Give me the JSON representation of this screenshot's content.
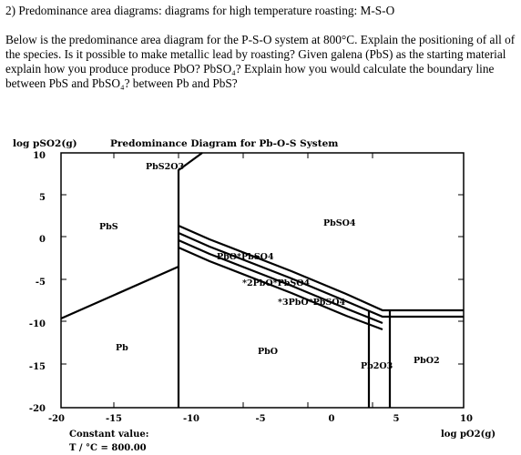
{
  "question": {
    "title": "2) Predominance area diagrams: diagrams for high temperature roasting: M-S-O",
    "body": "Below is the predominance area diagram for the P-S-O system at 800°C. Explain the positioning of all of the species. Is it possible to make metallic lead by roasting? Given galena (PbS) as the starting material explain how you produce produce PbO? PbSO₄? Explain how you would calculate the boundary line between PbS and PbSO₄? between Pb and PbS?"
  },
  "figure": {
    "title": "Predominance Diagram for Pb-O-S System",
    "y_axis_label": "log pSO2(g)",
    "x_axis_label": "log pO2(g)",
    "y_ticks": [
      "10",
      "5",
      "0",
      "-5",
      "-10",
      "-15",
      "-20"
    ],
    "x_ticks": [
      "-20",
      "-15",
      "-10",
      "-5",
      "0",
      "5",
      "10"
    ],
    "regions": {
      "pbs2o3": "PbS2O3",
      "pbs": "PbS",
      "pbso4": "PbSO4",
      "pbo_pbso4": "PbO*PbSO4",
      "2pbo_pbso4": "*2PbO*PbSO4",
      "3pbo_pbso4": "*3PbO*PbSO4",
      "pb": "Pb",
      "pbo": "PbO",
      "pb2o3": "Pb2O3",
      "pbo2": "PbO2"
    },
    "constant_label": "Constant value:",
    "constant_value": "T / °C = 800.00"
  }
}
